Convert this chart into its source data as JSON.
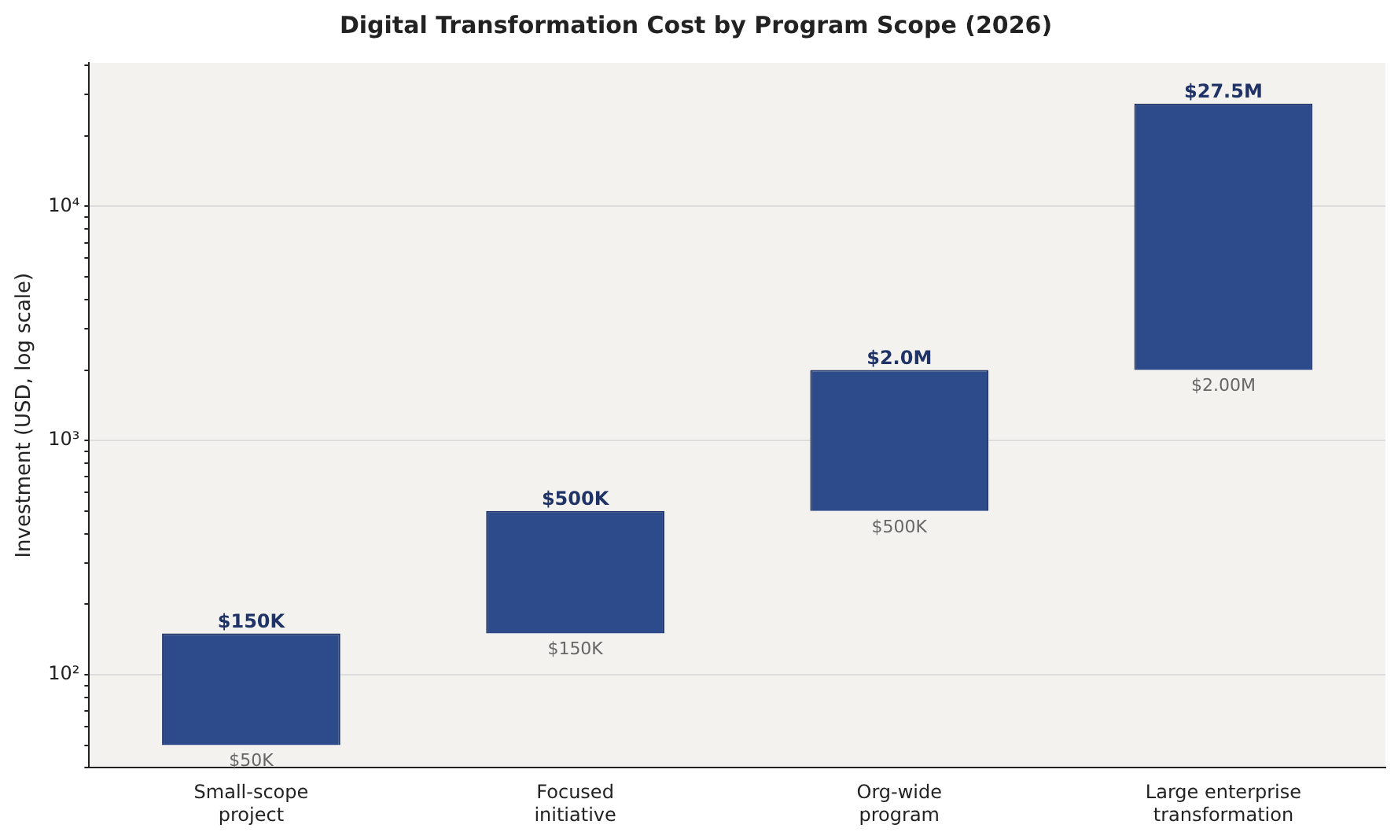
{
  "chart_data": {
    "type": "bar",
    "title": "Digital Transformation Cost by Program Scope (2026)",
    "ylabel": "Investment (USD, log scale)",
    "categories": [
      "Small-scope project",
      "Focused initiative",
      "Org-wide program",
      "Large enterprise transformation"
    ],
    "base": [
      50,
      150,
      500,
      2000
    ],
    "values": [
      100,
      350,
      1500,
      25500
    ],
    "color": "#2d4a8a",
    "annotations": [
      {
        "text": "$150K",
        "x": "Small-scope project",
        "y": 150
      },
      {
        "text": "$500K",
        "x": "Focused initiative",
        "y": 500
      },
      {
        "text": "$2.0M",
        "x": "Org-wide program",
        "y": 2000
      },
      {
        "text": "$27.5M",
        "x": "Large enterprise transformation",
        "y": 27500
      },
      {
        "text": "$50K",
        "x": "Small-scope project",
        "y": 50
      },
      {
        "text": "$150K",
        "x": "Focused initiative",
        "y": 150
      },
      {
        "text": "$500K",
        "x": "Org-wide program",
        "y": 500
      },
      {
        "text": "$2.00M",
        "x": "Large enterprise transformation",
        "y": 2000
      }
    ],
    "log": true,
    "ylim": [
      40,
      41000
    ],
    "yticks": [
      {
        "value": 40,
        "label": null
      },
      {
        "value": 50,
        "label": null
      },
      {
        "value": 60,
        "label": null
      },
      {
        "value": 70,
        "label": null
      },
      {
        "value": 80,
        "label": null
      },
      {
        "value": 90,
        "label": null
      },
      {
        "value": 100,
        "label": "10²"
      },
      {
        "value": 200,
        "label": null
      },
      {
        "value": 300,
        "label": null
      },
      {
        "value": 400,
        "label": null
      },
      {
        "value": 500,
        "label": null
      },
      {
        "value": 600,
        "label": null
      },
      {
        "value": 700,
        "label": null
      },
      {
        "value": 800,
        "label": null
      },
      {
        "value": 900,
        "label": null
      },
      {
        "value": 1000,
        "label": "10³"
      },
      {
        "value": 2000,
        "label": null
      },
      {
        "value": 3000,
        "label": null
      },
      {
        "value": 4000,
        "label": null
      },
      {
        "value": 5000,
        "label": null
      },
      {
        "value": 6000,
        "label": null
      },
      {
        "value": 7000,
        "label": null
      },
      {
        "value": 8000,
        "label": null
      },
      {
        "value": 9000,
        "label": null
      },
      {
        "value": 10000,
        "label": "10⁴"
      },
      {
        "value": 20000,
        "label": null
      },
      {
        "value": 30000,
        "label": null
      },
      {
        "value": 40000,
        "label": null
      }
    ],
    "grid": "y",
    "legend": false
  }
}
